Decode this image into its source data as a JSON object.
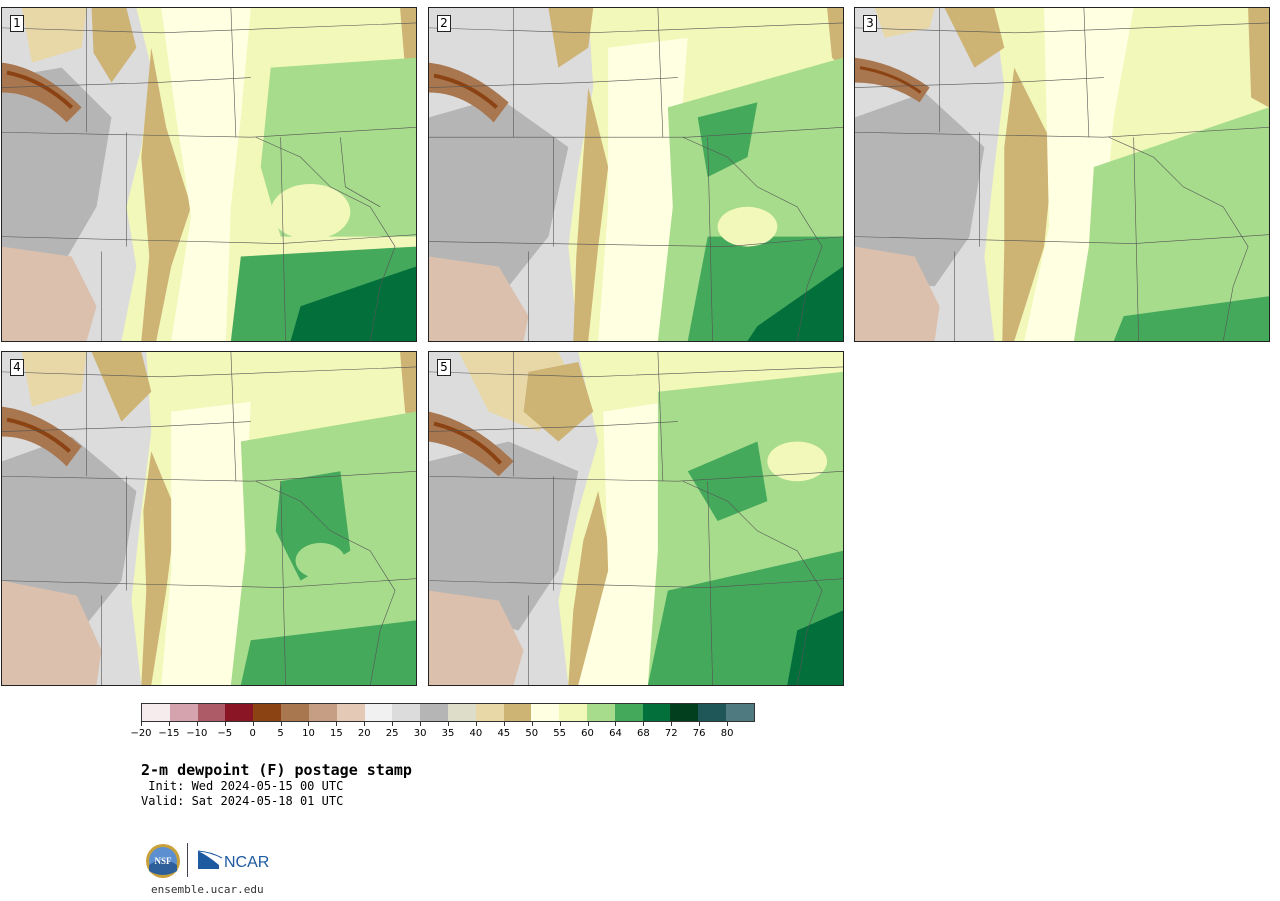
{
  "panels": [
    {
      "number": "1"
    },
    {
      "number": "2"
    },
    {
      "number": "3"
    },
    {
      "number": "4"
    },
    {
      "number": "5"
    }
  ],
  "colorbar": {
    "colors": [
      "#f6ecee",
      "#d4a3ad",
      "#ad5b66",
      "#8a1525",
      "#8c4313",
      "#a8764f",
      "#c59e83",
      "#e3c9b6",
      "#f1f1f2",
      "#dcdcdc",
      "#b5b5b5",
      "#ddddc9",
      "#e8d8a8",
      "#cdb374",
      "#ffffe1",
      "#f2f7ba",
      "#a6dc8c",
      "#45a95c",
      "#03703c",
      "#013f1f",
      "#1f5758",
      "#4f7b80"
    ],
    "tick_labels": [
      "−20",
      "−15",
      "−10",
      "−5",
      "0",
      "5",
      "10",
      "15",
      "20",
      "25",
      "30",
      "35",
      "40",
      "45",
      "50",
      "55",
      "60",
      "64",
      "68",
      "72",
      "76",
      "80"
    ]
  },
  "title": "2-m dewpoint (F) postage stamp",
  "init_line": " Init: Wed 2024-05-15 00 UTC",
  "valid_line": "Valid: Sat 2024-05-18 01 UTC",
  "logos": {
    "nsf": "NSF",
    "ncar": "NCAR"
  },
  "website": "ensemble.ucar.edu"
}
